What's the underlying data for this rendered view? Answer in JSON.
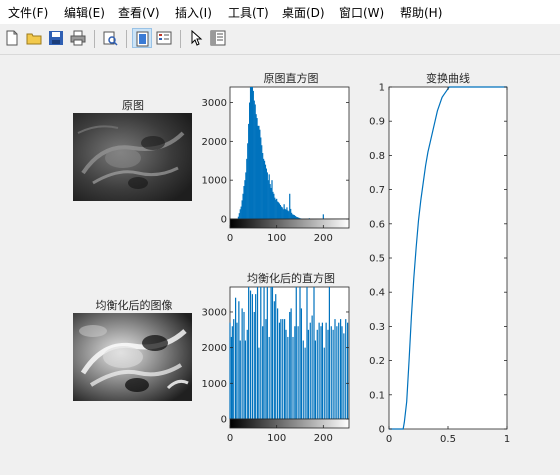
{
  "menu": {
    "items": [
      {
        "label": "文件(F)"
      },
      {
        "label": "编辑(E)"
      },
      {
        "label": "查看(V)"
      },
      {
        "label": "插入(I)"
      },
      {
        "label": "工具(T)"
      },
      {
        "label": "桌面(D)"
      },
      {
        "label": "窗口(W)"
      },
      {
        "label": "帮助(H)"
      }
    ]
  },
  "toolbar": {
    "buttons": [
      "new-file-icon",
      "open-folder-icon",
      "save-icon",
      "print-icon",
      "print-preview-icon",
      "link-plot-icon",
      "insert-colorbar-icon",
      "insert-legend-icon",
      "pointer-icon",
      "property-editor-icon"
    ],
    "pressed": [
      "link-plot-icon"
    ]
  },
  "panels": {
    "original_title": "原图",
    "hist1_title": "原图直方图",
    "curve_title": "变换曲线",
    "equalized_title": "均衡化后的图像",
    "hist2_title": "均衡化后的直方图"
  },
  "colors": {
    "accent": "#0072bd",
    "axes_text": "#262626",
    "figure_bg": "#f0f0f0"
  },
  "chart_data": [
    {
      "id": "hist-original",
      "type": "bar",
      "title": "原图直方图",
      "xlim": [
        0,
        255
      ],
      "ylim": [
        0,
        3400
      ],
      "xticks": [
        0,
        100,
        200
      ],
      "yticks": [
        0,
        1000,
        2000,
        3000
      ],
      "color": "#0072bd",
      "colorbar": "gray",
      "x": [
        18,
        20,
        22,
        24,
        26,
        28,
        30,
        32,
        34,
        36,
        38,
        40,
        42,
        44,
        46,
        48,
        50,
        52,
        54,
        56,
        58,
        60,
        62,
        64,
        66,
        68,
        70,
        72,
        74,
        76,
        78,
        80,
        82,
        84,
        86,
        88,
        90,
        92,
        94,
        96,
        98,
        100,
        102,
        104,
        106,
        108,
        110,
        112,
        114,
        116,
        118,
        120,
        122,
        124,
        126,
        128,
        130,
        132,
        134,
        136,
        138,
        140,
        142,
        144,
        146,
        148,
        150,
        152,
        154,
        156,
        158,
        160,
        170,
        180,
        190,
        200,
        210
      ],
      "y": [
        60,
        150,
        250,
        320,
        480,
        650,
        850,
        1000,
        1200,
        1550,
        1950,
        2450,
        3000,
        3400,
        3400,
        3400,
        3300,
        3050,
        2950,
        2700,
        2600,
        2400,
        2400,
        2300,
        2100,
        1900,
        1700,
        1550,
        1500,
        1400,
        1300,
        1200,
        1000,
        1150,
        900,
        800,
        1000,
        700,
        650,
        550,
        500,
        520,
        450,
        430,
        400,
        360,
        320,
        300,
        250,
        380,
        260,
        240,
        300,
        220,
        200,
        650,
        260,
        160,
        120,
        110,
        100,
        80,
        60,
        50,
        40,
        30,
        20,
        15,
        10,
        5,
        5,
        5,
        20,
        5,
        5,
        120,
        5
      ]
    },
    {
      "id": "hist-equalized",
      "type": "bar",
      "title": "均衡化后的直方图",
      "xlim": [
        0,
        255
      ],
      "ylim": [
        0,
        3700
      ],
      "xticks": [
        0,
        100,
        200
      ],
      "yticks": [
        0,
        1000,
        2000,
        3000
      ],
      "color": "#0072bd",
      "colorbar": "gray",
      "x": [
        0,
        3,
        5,
        8,
        12,
        15,
        19,
        22,
        26,
        30,
        33,
        37,
        40,
        44,
        48,
        52,
        55,
        59,
        62,
        66,
        70,
        73,
        77,
        80,
        84,
        88,
        91,
        95,
        98,
        102,
        106,
        109,
        113,
        117,
        120,
        124,
        128,
        131,
        135,
        139,
        142,
        146,
        150,
        153,
        157,
        161,
        165,
        168,
        172,
        176,
        180,
        183,
        187,
        191,
        195,
        198,
        202,
        206,
        210,
        213,
        217,
        221,
        225,
        229,
        233,
        237,
        240,
        244,
        248,
        252
      ],
      "y": [
        2700,
        2300,
        2600,
        2800,
        3400,
        2700,
        3300,
        2200,
        3100,
        3000,
        2200,
        2500,
        3700,
        3600,
        3500,
        3000,
        3500,
        3700,
        2000,
        3700,
        2600,
        3700,
        2800,
        3700,
        2300,
        3700,
        3700,
        3300,
        3500,
        3100,
        2700,
        2800,
        2800,
        2800,
        2500,
        2300,
        3000,
        3100,
        2300,
        2600,
        3700,
        2600,
        3700,
        3100,
        2200,
        2000,
        3700,
        2500,
        2700,
        2900,
        3700,
        2200,
        2500,
        2700,
        2600,
        2700,
        2000,
        2700,
        2500,
        3700,
        2600,
        2500,
        2800,
        2600,
        2700,
        2800,
        2600,
        2400,
        2800,
        2700
      ]
    },
    {
      "id": "transform-curve",
      "type": "line",
      "title": "变换曲线",
      "xlim": [
        0,
        1
      ],
      "ylim": [
        0,
        1
      ],
      "xticks": [
        0,
        0.5,
        1
      ],
      "yticks": [
        0,
        0.1,
        0.2,
        0.3,
        0.4,
        0.5,
        0.6,
        0.7,
        0.8,
        0.9,
        1
      ],
      "color": "#0072bd",
      "x": [
        0,
        0.12,
        0.13,
        0.15,
        0.17,
        0.19,
        0.21,
        0.23,
        0.25,
        0.27,
        0.29,
        0.31,
        0.33,
        0.35,
        0.37,
        0.39,
        0.41,
        0.43,
        0.45,
        0.47,
        0.49,
        0.51,
        0.55,
        0.6,
        0.7,
        0.8,
        1
      ],
      "y": [
        0,
        0,
        0.02,
        0.08,
        0.2,
        0.33,
        0.44,
        0.53,
        0.61,
        0.67,
        0.72,
        0.77,
        0.81,
        0.84,
        0.87,
        0.9,
        0.93,
        0.95,
        0.97,
        0.98,
        0.99,
        1,
        1,
        1,
        1,
        1,
        1
      ]
    }
  ]
}
